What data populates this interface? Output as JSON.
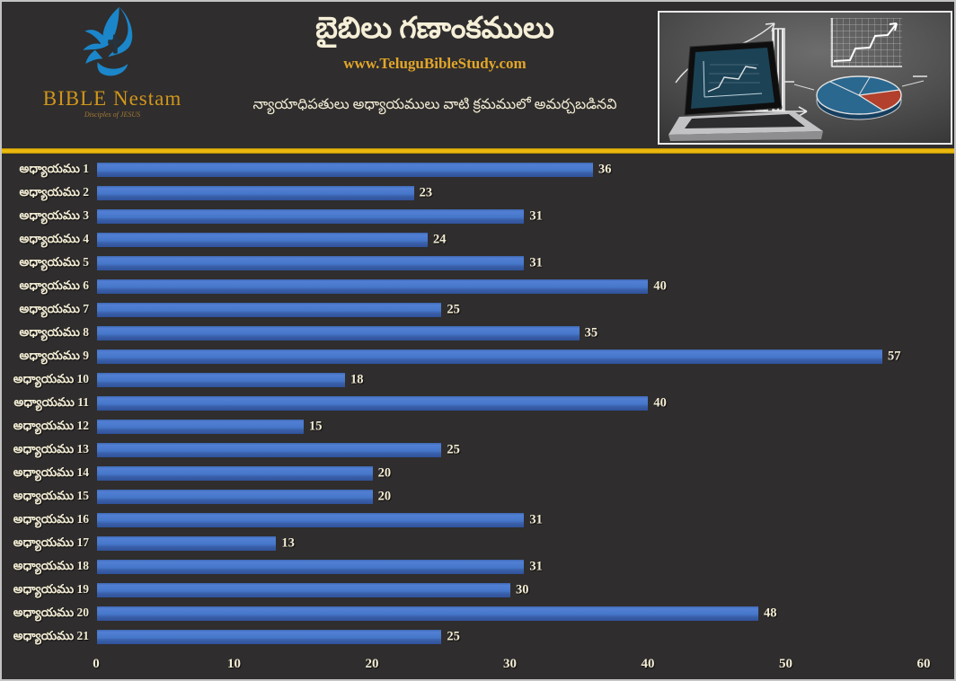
{
  "colors": {
    "background": "#2F2D2D",
    "frame": "#C4C4C4",
    "divider_yellow": "#EDB90D",
    "bar_blue": "#4677C9",
    "bar_shadow_blue": "#2F519A",
    "text_cream": "#F2ECD4",
    "gold": "#E2A62A",
    "logo_gold": "#D1961B",
    "logo_blue": "#1B86C9"
  },
  "header": {
    "logo": {
      "brand": "BIBLE Nestam",
      "tagline": "Disciples of JESUS",
      "icon": "dove-cross-hand-icon"
    },
    "title": "బైబిలు గణాంకములు",
    "website": "www.TeluguBibleStudy.com",
    "subtitle": "న్యాయాధిపతులు అధ్యాయములు వాటి క్రమములో అమర్చబడినవి",
    "photo": "laptop-with-chalkboard-charts-photo"
  },
  "chart_data": {
    "type": "bar",
    "orientation": "horizontal",
    "title": "బైబిలు గణాంకములు",
    "xlabel": "",
    "ylabel": "",
    "categories": [
      "అధ్యాయము 1",
      "అధ్యాయము 2",
      "అధ్యాయము 3",
      "అధ్యాయము 4",
      "అధ్యాయము 5",
      "అధ్యాయము 6",
      "అధ్యాయము 7",
      "అధ్యాయము 8",
      "అధ్యాయము 9",
      "అధ్యాయము 10",
      "అధ్యాయము 11",
      "అధ్యాయము 12",
      "అధ్యాయము 13",
      "అధ్యాయము 14",
      "అధ్యాయము 15",
      "అధ్యాయము 16",
      "అధ్యాయము 17",
      "అధ్యాయము 18",
      "అధ్యాయము 19",
      "అధ్యాయము 20",
      "అధ్యాయము 21"
    ],
    "values": [
      36,
      23,
      31,
      24,
      31,
      40,
      25,
      35,
      57,
      18,
      40,
      15,
      25,
      20,
      20,
      31,
      13,
      31,
      30,
      48,
      25
    ],
    "xlim": [
      0,
      60
    ],
    "x_ticks": [
      0,
      10,
      20,
      30,
      40,
      50,
      60
    ],
    "grid": false,
    "legend": "none",
    "value_labels": true
  }
}
